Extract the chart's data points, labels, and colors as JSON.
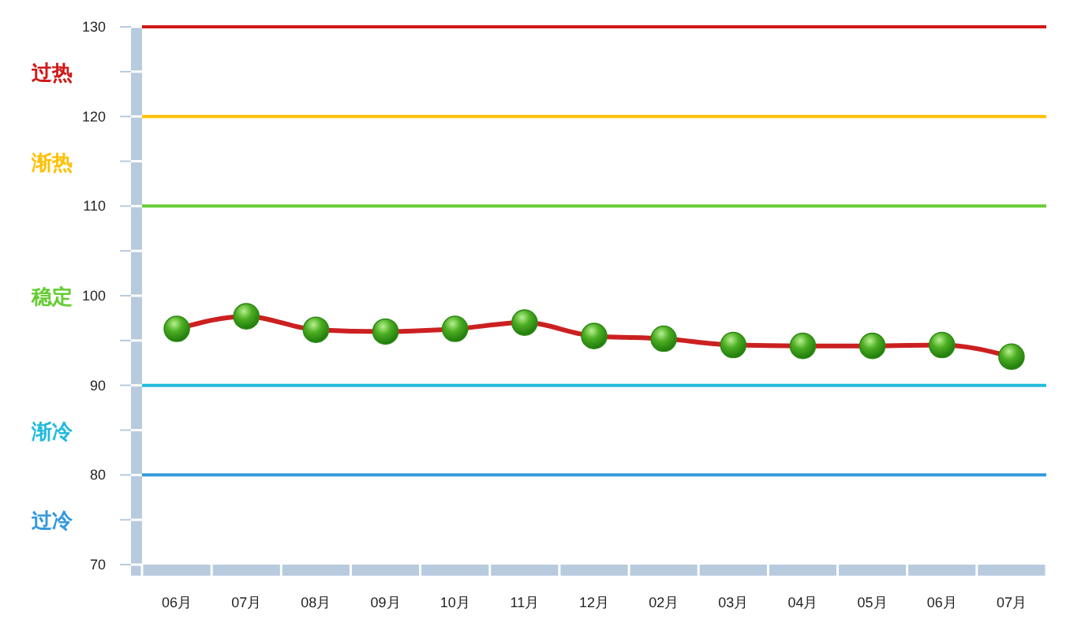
{
  "chart_data": {
    "type": "line",
    "categories": [
      "06月",
      "07月",
      "08月",
      "09月",
      "10月",
      "11月",
      "12月",
      "02月",
      "03月",
      "04月",
      "05月",
      "06月",
      "07月"
    ],
    "series": [
      {
        "color": "#cc2020",
        "values": [
          96.3,
          97.7,
          96.2,
          96.0,
          96.3,
          97.0,
          95.5,
          95.2,
          94.5,
          94.4,
          94.4,
          94.5,
          93.2
        ]
      }
    ],
    "ylim": [
      70,
      130
    ],
    "yticks": [
      70,
      {
        "value": 75,
        "label": null
      },
      80,
      {
        "value": 85,
        "label": null
      },
      90,
      {
        "value": 95,
        "label": null
      },
      100,
      {
        "value": 105,
        "label": null
      },
      110,
      {
        "value": 115,
        "label": null
      },
      120,
      {
        "value": 125,
        "label": null
      },
      130
    ],
    "ref_lines": [
      {
        "axis": "y",
        "value": 130,
        "color": "#d01818"
      },
      {
        "axis": "y",
        "value": 120,
        "color": "#ffc000"
      },
      {
        "axis": "y",
        "value": 110,
        "color": "#66cc33"
      },
      {
        "axis": "y",
        "value": 90,
        "color": "#22bbdd"
      },
      {
        "axis": "y",
        "value": 80,
        "color": "#3399dd"
      }
    ],
    "annotations": [
      "过热",
      "渐热",
      "稳定",
      "渐冷",
      "过冷"
    ],
    "marker": "circle",
    "grid": false
  }
}
